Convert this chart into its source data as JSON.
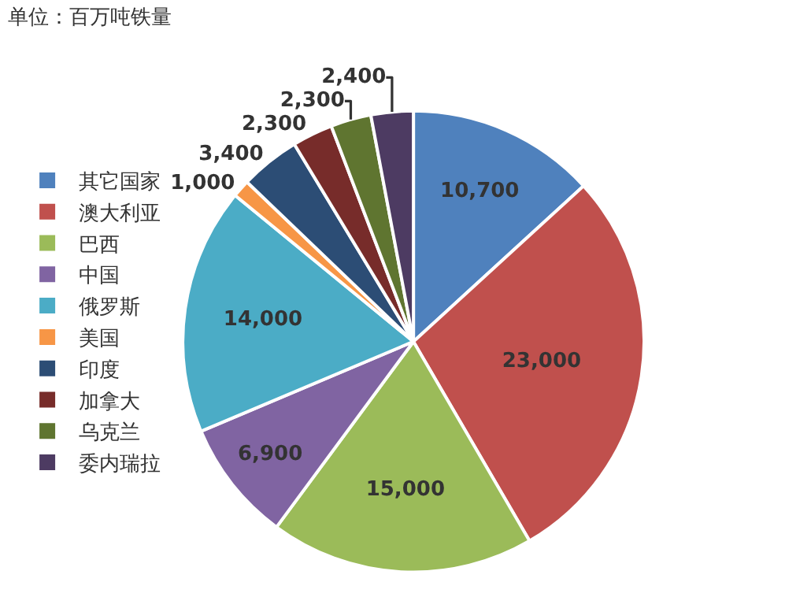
{
  "chart_data": {
    "type": "pie",
    "title": "单位：百万吨铁量",
    "categories": [
      "其它国家",
      "澳大利亚",
      "巴西",
      "中国",
      "俄罗斯",
      "美国",
      "印度",
      "加拿大",
      "乌克兰",
      "委内瑞拉"
    ],
    "values": [
      10700,
      23000,
      15000,
      6900,
      14000,
      1000,
      3400,
      2300,
      2300,
      2400
    ],
    "colors": [
      "#4f81bd",
      "#c0504d",
      "#9bbb59",
      "#8064a2",
      "#4bacc6",
      "#f79646",
      "#2c4d75",
      "#772c2a",
      "#5f7530",
      "#4d3b62"
    ],
    "value_labels": [
      "10,700",
      "23,000",
      "15,000",
      "6,900",
      "14,000",
      "1,000",
      "3,400",
      "2,300",
      "2,300",
      "2,400"
    ],
    "legend": "left"
  }
}
